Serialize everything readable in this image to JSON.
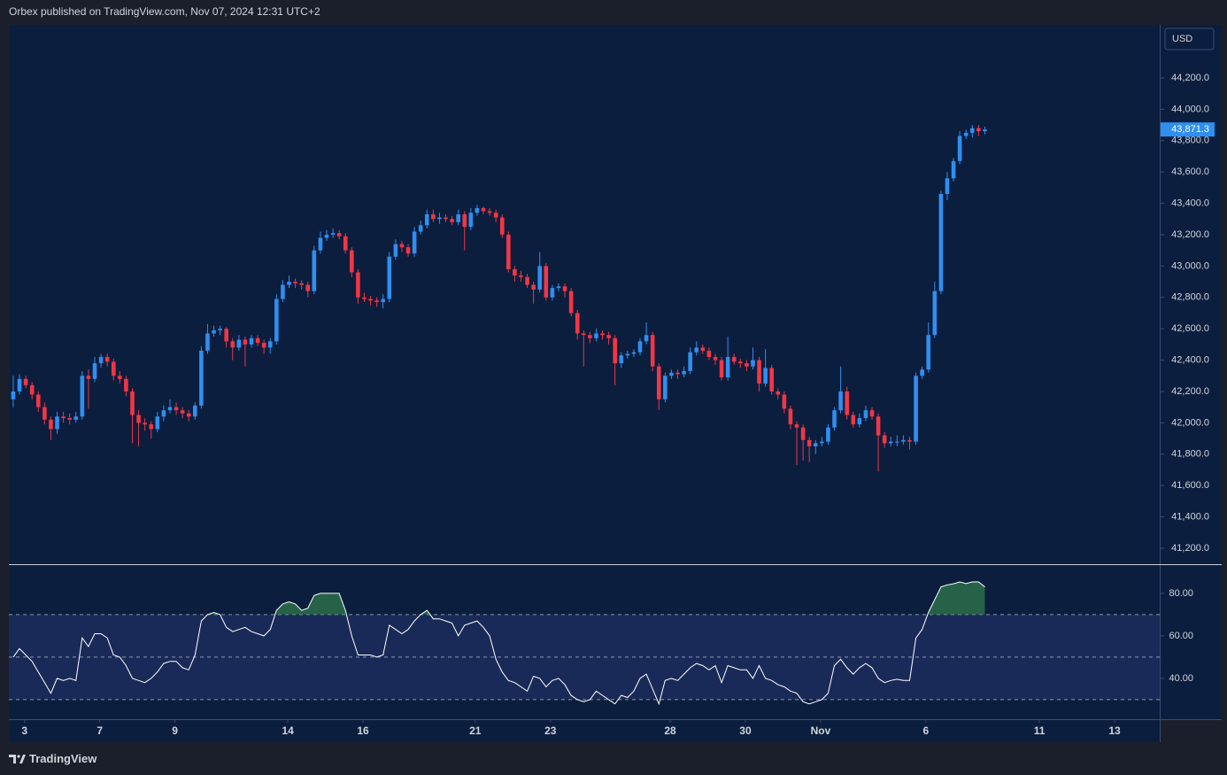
{
  "header": {
    "text": "Orbex published on TradingView.com, Nov 07, 2024 12:31 UTC+2"
  },
  "footer": {
    "brand": "TradingView"
  },
  "currency": "USD",
  "chart_data": [
    {
      "type": "candlestick",
      "up_color": "#2f8ff0",
      "down_color": "#f23645",
      "ylim": [
        41098,
        44539
      ],
      "yticks": [
        {
          "value": 41200,
          "label": "41,200.0"
        },
        {
          "value": 41400,
          "label": "41,400.0"
        },
        {
          "value": 41600,
          "label": "41,600.0"
        },
        {
          "value": 41800,
          "label": "41,800.0"
        },
        {
          "value": 42000,
          "label": "42,000.0"
        },
        {
          "value": 42200,
          "label": "42,200.0"
        },
        {
          "value": 42400,
          "label": "42,400.0"
        },
        {
          "value": 42600,
          "label": "42,600.0"
        },
        {
          "value": 42800,
          "label": "42,800.0"
        },
        {
          "value": 43000,
          "label": "43,000.0"
        },
        {
          "value": 43200,
          "label": "43,200.0"
        },
        {
          "value": 43400,
          "label": "43,400.0"
        },
        {
          "value": 43600,
          "label": "43,600.0"
        },
        {
          "value": 43800,
          "label": "43,800.0"
        },
        {
          "value": 44000,
          "label": "44,000.0"
        },
        {
          "value": 44200,
          "label": "44,200.0"
        }
      ],
      "last_price_label": "43,871.3",
      "ohlc": [
        [
          42150,
          42300,
          42100,
          42200
        ],
        [
          42200,
          42310,
          42180,
          42280
        ],
        [
          42280,
          42300,
          42220,
          42240
        ],
        [
          42240,
          42260,
          42150,
          42180
        ],
        [
          42180,
          42200,
          42070,
          42100
        ],
        [
          42100,
          42130,
          41990,
          42020
        ],
        [
          42020,
          42040,
          41890,
          41960
        ],
        [
          41960,
          42070,
          41930,
          42040
        ],
        [
          42040,
          42070,
          42000,
          42030
        ],
        [
          42030,
          42060,
          41990,
          42020
        ],
        [
          42020,
          42070,
          42000,
          42040
        ],
        [
          42040,
          42330,
          42020,
          42300
        ],
        [
          42300,
          42340,
          42090,
          42280
        ],
        [
          42280,
          42420,
          42260,
          42380
        ],
        [
          42380,
          42440,
          42350,
          42420
        ],
        [
          42420,
          42440,
          42360,
          42390
        ],
        [
          42390,
          42410,
          42270,
          42300
        ],
        [
          42300,
          42330,
          42250,
          42280
        ],
        [
          42280,
          42300,
          42170,
          42200
        ],
        [
          42200,
          42220,
          41870,
          42050
        ],
        [
          42050,
          42080,
          41850,
          42000
        ],
        [
          42000,
          42030,
          41950,
          41990
        ],
        [
          41990,
          42010,
          41900,
          41960
        ],
        [
          41960,
          42070,
          41940,
          42040
        ],
        [
          42040,
          42110,
          42010,
          42080
        ],
        [
          42080,
          42150,
          42060,
          42100
        ],
        [
          42100,
          42130,
          42050,
          42080
        ],
        [
          42080,
          42100,
          42030,
          42060
        ],
        [
          42060,
          42080,
          42010,
          42040
        ],
        [
          42040,
          42130,
          42020,
          42110
        ],
        [
          42110,
          42490,
          42090,
          42460
        ],
        [
          42460,
          42630,
          42440,
          42570
        ],
        [
          42570,
          42620,
          42550,
          42590
        ],
        [
          42590,
          42620,
          42560,
          42600
        ],
        [
          42600,
          42610,
          42480,
          42520
        ],
        [
          42520,
          42540,
          42400,
          42480
        ],
        [
          42480,
          42560,
          42460,
          42530
        ],
        [
          42530,
          42550,
          42360,
          42500
        ],
        [
          42500,
          42560,
          42480,
          42540
        ],
        [
          42540,
          42560,
          42490,
          42510
        ],
        [
          42510,
          42530,
          42440,
          42480
        ],
        [
          42480,
          42540,
          42440,
          42520
        ],
        [
          42520,
          42820,
          42500,
          42790
        ],
        [
          42790,
          42910,
          42770,
          42880
        ],
        [
          42880,
          42940,
          42860,
          42900
        ],
        [
          42900,
          42920,
          42860,
          42890
        ],
        [
          42890,
          42910,
          42850,
          42880
        ],
        [
          42880,
          42900,
          42800,
          42840
        ],
        [
          42840,
          43130,
          42820,
          43100
        ],
        [
          43100,
          43220,
          43080,
          43180
        ],
        [
          43180,
          43230,
          43160,
          43200
        ],
        [
          43200,
          43240,
          43180,
          43210
        ],
        [
          43210,
          43230,
          43170,
          43190
        ],
        [
          43190,
          43210,
          43080,
          43100
        ],
        [
          43100,
          43120,
          42930,
          42960
        ],
        [
          42960,
          42980,
          42760,
          42800
        ],
        [
          42800,
          42830,
          42770,
          42790
        ],
        [
          42790,
          42810,
          42750,
          42780
        ],
        [
          42780,
          42800,
          42740,
          42770
        ],
        [
          42770,
          42820,
          42730,
          42790
        ],
        [
          42790,
          43090,
          42770,
          43060
        ],
        [
          43060,
          43170,
          43040,
          43140
        ],
        [
          43140,
          43160,
          43090,
          43120
        ],
        [
          43120,
          43140,
          43060,
          43080
        ],
        [
          43080,
          43250,
          43060,
          43220
        ],
        [
          43220,
          43290,
          43200,
          43260
        ],
        [
          43260,
          43360,
          43240,
          43330
        ],
        [
          43330,
          43360,
          43280,
          43300
        ],
        [
          43300,
          43340,
          43270,
          43310
        ],
        [
          43310,
          43330,
          43280,
          43300
        ],
        [
          43300,
          43320,
          43260,
          43280
        ],
        [
          43280,
          43360,
          43260,
          43330
        ],
        [
          43330,
          43350,
          43100,
          43250
        ],
        [
          43250,
          43370,
          43230,
          43340
        ],
        [
          43340,
          43390,
          43320,
          43370
        ],
        [
          43370,
          43380,
          43330,
          43350
        ],
        [
          43350,
          43370,
          43320,
          43340
        ],
        [
          43340,
          43360,
          43280,
          43310
        ],
        [
          43310,
          43330,
          43180,
          43200
        ],
        [
          43200,
          43220,
          42960,
          42980
        ],
        [
          42980,
          43000,
          42900,
          42940
        ],
        [
          42940,
          42970,
          42900,
          42930
        ],
        [
          42930,
          42950,
          42860,
          42880
        ],
        [
          42880,
          42900,
          42760,
          42850
        ],
        [
          42850,
          43090,
          42830,
          43000
        ],
        [
          43000,
          43020,
          42780,
          42800
        ],
        [
          42800,
          42880,
          42780,
          42860
        ],
        [
          42860,
          42890,
          42840,
          42870
        ],
        [
          42870,
          42890,
          42800,
          42840
        ],
        [
          42840,
          42860,
          42680,
          42700
        ],
        [
          42700,
          42720,
          42530,
          42570
        ],
        [
          42570,
          42590,
          42360,
          42560
        ],
        [
          42560,
          42580,
          42510,
          42540
        ],
        [
          42540,
          42600,
          42520,
          42570
        ],
        [
          42570,
          42590,
          42530,
          42560
        ],
        [
          42560,
          42580,
          42500,
          42540
        ],
        [
          42540,
          42560,
          42240,
          42380
        ],
        [
          42380,
          42450,
          42350,
          42430
        ],
        [
          42430,
          42460,
          42410,
          42440
        ],
        [
          42440,
          42470,
          42420,
          42450
        ],
        [
          42450,
          42540,
          42430,
          42520
        ],
        [
          42520,
          42640,
          42500,
          42560
        ],
        [
          42560,
          42580,
          42330,
          42360
        ],
        [
          42360,
          42380,
          42080,
          42150
        ],
        [
          42150,
          42320,
          42130,
          42300
        ],
        [
          42300,
          42340,
          42280,
          42320
        ],
        [
          42320,
          42340,
          42280,
          42310
        ],
        [
          42310,
          42360,
          42290,
          42330
        ],
        [
          42330,
          42480,
          42310,
          42450
        ],
        [
          42450,
          42520,
          42430,
          42480
        ],
        [
          42480,
          42500,
          42440,
          42460
        ],
        [
          42460,
          42480,
          42400,
          42420
        ],
        [
          42420,
          42440,
          42370,
          42400
        ],
        [
          42400,
          42420,
          42270,
          42290
        ],
        [
          42290,
          42550,
          42270,
          42420
        ],
        [
          42420,
          42440,
          42370,
          42390
        ],
        [
          42390,
          42410,
          42350,
          42380
        ],
        [
          42380,
          42400,
          42330,
          42360
        ],
        [
          42360,
          42480,
          42340,
          42400
        ],
        [
          42400,
          42420,
          42200,
          42250
        ],
        [
          42250,
          42470,
          42230,
          42350
        ],
        [
          42350,
          42370,
          42180,
          42200
        ],
        [
          42200,
          42220,
          42150,
          42180
        ],
        [
          42180,
          42200,
          42060,
          42090
        ],
        [
          42090,
          42110,
          41960,
          41990
        ],
        [
          41990,
          42010,
          41730,
          41970
        ],
        [
          41970,
          41990,
          41760,
          41890
        ],
        [
          41890,
          41910,
          41750,
          41850
        ],
        [
          41850,
          41890,
          41800,
          41870
        ],
        [
          41870,
          41910,
          41850,
          41880
        ],
        [
          41880,
          41990,
          41860,
          41970
        ],
        [
          41970,
          42100,
          41950,
          42080
        ],
        [
          42080,
          42360,
          42060,
          42200
        ],
        [
          42200,
          42230,
          42020,
          42050
        ],
        [
          42050,
          42070,
          41970,
          41990
        ],
        [
          41990,
          42060,
          41970,
          42030
        ],
        [
          42030,
          42110,
          42010,
          42080
        ],
        [
          42080,
          42100,
          42020,
          42040
        ],
        [
          42040,
          42060,
          41690,
          41920
        ],
        [
          41920,
          41940,
          41840,
          41870
        ],
        [
          41870,
          41910,
          41850,
          41880
        ],
        [
          41880,
          41920,
          41850,
          41880
        ],
        [
          41880,
          41920,
          41860,
          41890
        ],
        [
          41890,
          41910,
          41830,
          41880
        ],
        [
          41880,
          42320,
          41860,
          42300
        ],
        [
          42300,
          42360,
          42280,
          42340
        ],
        [
          42340,
          42640,
          42320,
          42560
        ],
        [
          42560,
          42900,
          42540,
          42840
        ],
        [
          42840,
          43480,
          42820,
          43460
        ],
        [
          43460,
          43600,
          43420,
          43560
        ],
        [
          43560,
          43690,
          43540,
          43670
        ],
        [
          43670,
          43860,
          43650,
          43830
        ],
        [
          43830,
          43870,
          43810,
          43850
        ],
        [
          43850,
          43900,
          43820,
          43880
        ],
        [
          43880,
          43900,
          43830,
          43860
        ],
        [
          43860,
          43890,
          43840,
          43871.3
        ]
      ]
    },
    {
      "type": "line",
      "color": "#ffffff",
      "band_color": "#1a2a58",
      "fill_color": "#2f7a4c",
      "bands": [
        70,
        50,
        30
      ],
      "ylim": [
        20.8,
        93.3
      ],
      "yticks": [
        {
          "value": 40,
          "label": "40.00"
        },
        {
          "value": 60,
          "label": "60.00"
        },
        {
          "value": 80,
          "label": "80.00"
        }
      ],
      "xlim": [
        -0.7,
        182.9
      ],
      "xticks": [
        {
          "value": 1.8,
          "label": "3"
        },
        {
          "value": 13.8,
          "label": "7"
        },
        {
          "value": 25.8,
          "label": "9"
        },
        {
          "value": 43.8,
          "label": "14"
        },
        {
          "value": 55.8,
          "label": "16"
        },
        {
          "value": 73.7,
          "label": "21"
        },
        {
          "value": 85.7,
          "label": "23"
        },
        {
          "value": 104.8,
          "label": "28"
        },
        {
          "value": 116.8,
          "label": "30"
        },
        {
          "value": 128.8,
          "label": "Nov"
        },
        {
          "value": 145.6,
          "label": "6"
        },
        {
          "value": 163.7,
          "label": "11"
        },
        {
          "value": 175.7,
          "label": "13"
        }
      ],
      "values": [
        50,
        54,
        51,
        48,
        43,
        38,
        33,
        40,
        39,
        40,
        39,
        59,
        55,
        61,
        61,
        59,
        51,
        50,
        46,
        40,
        39,
        38,
        40,
        43,
        47,
        48,
        48,
        45,
        44,
        51,
        67,
        70,
        71,
        70,
        64,
        62,
        63,
        64,
        62,
        61,
        60,
        63,
        72,
        75,
        76,
        75,
        72,
        73,
        79,
        80,
        80,
        80,
        80,
        72,
        60,
        51,
        51,
        51,
        50,
        51,
        65,
        63,
        61,
        63,
        67,
        70,
        72,
        68,
        68,
        67,
        66,
        60,
        65,
        66,
        67,
        64,
        60,
        49,
        43,
        39,
        38,
        36,
        34,
        41,
        40,
        36,
        39,
        40,
        37,
        32,
        30,
        29,
        30,
        34,
        32,
        30,
        28,
        32,
        31,
        34,
        40,
        42,
        35,
        28,
        39,
        40,
        39,
        42,
        45,
        47,
        46,
        44,
        46,
        38,
        46,
        45,
        44,
        44,
        40,
        46,
        40,
        39,
        37,
        36,
        34,
        33,
        29,
        28,
        29,
        30,
        33,
        46,
        49,
        45,
        42,
        45,
        47,
        45,
        40,
        38,
        39,
        39.6,
        39,
        39,
        59,
        63,
        71,
        77,
        83,
        84,
        84.5,
        85.4,
        84.6,
        85.4,
        85.4,
        83
      ]
    }
  ]
}
